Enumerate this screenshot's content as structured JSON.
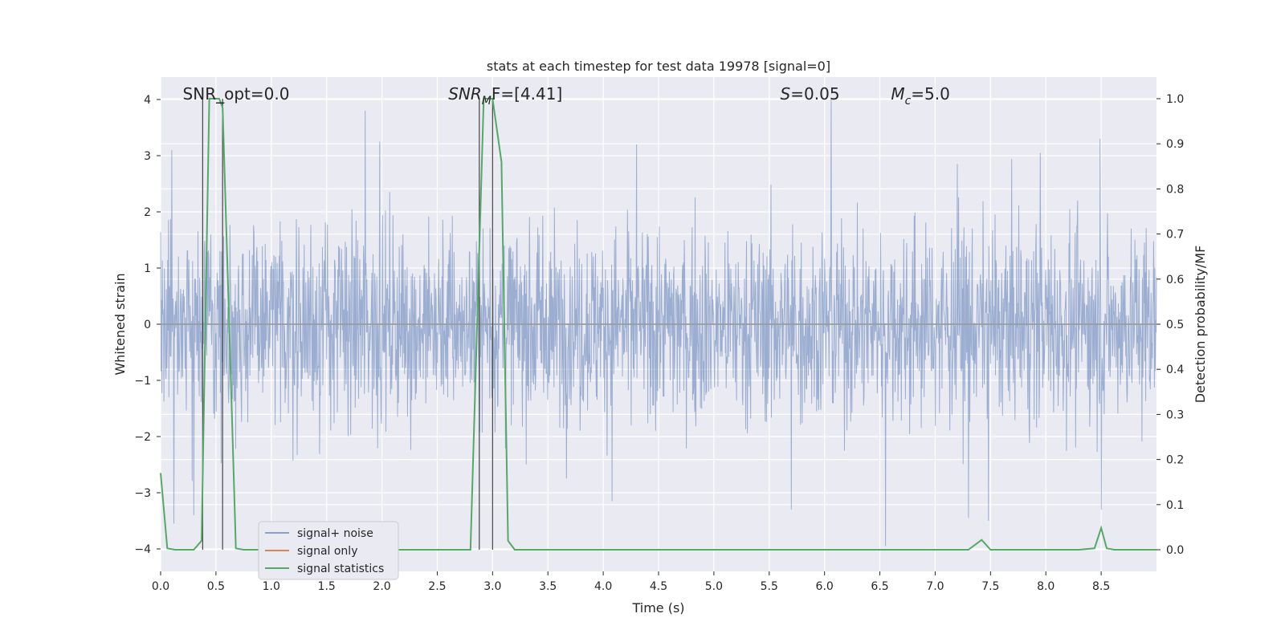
{
  "chart_data": {
    "type": "line",
    "title": "stats at each timestep for test data 19978 [signal=0]",
    "xlabel": "Time (s)",
    "ylabel": "Whitened strain",
    "ylabel_right": "Detection probability/MF",
    "xlim": [
      0.0,
      9.0
    ],
    "ylim": [
      -4.4,
      4.4
    ],
    "ylim_right": [
      -0.048,
      1.048
    ],
    "x_ticks": [
      "0.0",
      "0.5",
      "1.0",
      "1.5",
      "2.0",
      "2.5",
      "3.0",
      "3.5",
      "4.0",
      "4.5",
      "5.0",
      "5.5",
      "6.0",
      "6.5",
      "7.0",
      "7.5",
      "8.0",
      "8.5"
    ],
    "y_ticks": [
      "4",
      "3",
      "2",
      "1",
      "0",
      "−1",
      "−2",
      "−3",
      "−4"
    ],
    "y_ticks_right": [
      "1.0",
      "0.9",
      "0.8",
      "0.7",
      "0.6",
      "0.5",
      "0.4",
      "0.3",
      "0.2",
      "0.1",
      "0.0"
    ],
    "grid": true,
    "legend_position": "lower-left",
    "annotations": [
      {
        "text": "SNR_opt=0.0",
        "x": 0.2
      },
      {
        "prefix": "SNR",
        "sub": "M",
        "suffix": "F=[4.41]",
        "x": 2.6
      },
      {
        "prefix": "S",
        "sub": "",
        "suffix": "=0.05",
        "x": 5.6
      },
      {
        "prefix": "M",
        "sub": "c",
        "suffix": "=5.0",
        "x": 6.6
      }
    ],
    "vertical_lines": [
      0.38,
      0.56,
      2.88,
      3.0
    ],
    "series": [
      {
        "name": "signal+ noise",
        "color": "#4c72b0",
        "kind": "noise",
        "envelope_typical": 1.3,
        "envelope_range": [
          -3.55,
          4.0
        ],
        "notable_peaks": [
          [
            0.1,
            3.1
          ],
          [
            1.85,
            3.8
          ],
          [
            1.98,
            3.25
          ],
          [
            4.3,
            3.2
          ],
          [
            6.06,
            4.0
          ],
          [
            7.2,
            2.85
          ],
          [
            7.95,
            3.05
          ],
          [
            8.49,
            3.3
          ]
        ],
        "notable_troughs": [
          [
            0.12,
            -3.55
          ],
          [
            0.3,
            -3.4
          ],
          [
            4.08,
            -3.15
          ],
          [
            5.7,
            -3.3
          ],
          [
            6.55,
            -3.95
          ],
          [
            7.3,
            -3.45
          ],
          [
            7.48,
            -3.5
          ],
          [
            8.5,
            -3.3
          ]
        ]
      },
      {
        "name": "signal only",
        "color": "#dd8452",
        "x": [
          0.0,
          9.0
        ],
        "y": [
          0.0,
          0.0
        ]
      },
      {
        "name": "signal statistics",
        "color": "#55a868",
        "axis": "right",
        "x": [
          0.0,
          0.06,
          0.13,
          0.3,
          0.37,
          0.44,
          0.53,
          0.56,
          0.62,
          0.68,
          0.75,
          2.6,
          2.8,
          2.92,
          3.0,
          3.08,
          3.14,
          3.2,
          3.3,
          7.3,
          7.42,
          7.5,
          8.3,
          8.44,
          8.5,
          8.55,
          8.62,
          9.0
        ],
        "y": [
          0.17,
          0.003,
          0.0,
          0.0,
          0.02,
          1.0,
          1.0,
          0.98,
          0.5,
          0.003,
          0.0,
          0.0,
          0.0,
          1.0,
          1.0,
          0.86,
          0.02,
          0.0,
          0.0,
          0.0,
          0.022,
          0.0,
          0.0,
          0.003,
          0.048,
          0.003,
          0.0,
          0.0
        ]
      }
    ]
  }
}
